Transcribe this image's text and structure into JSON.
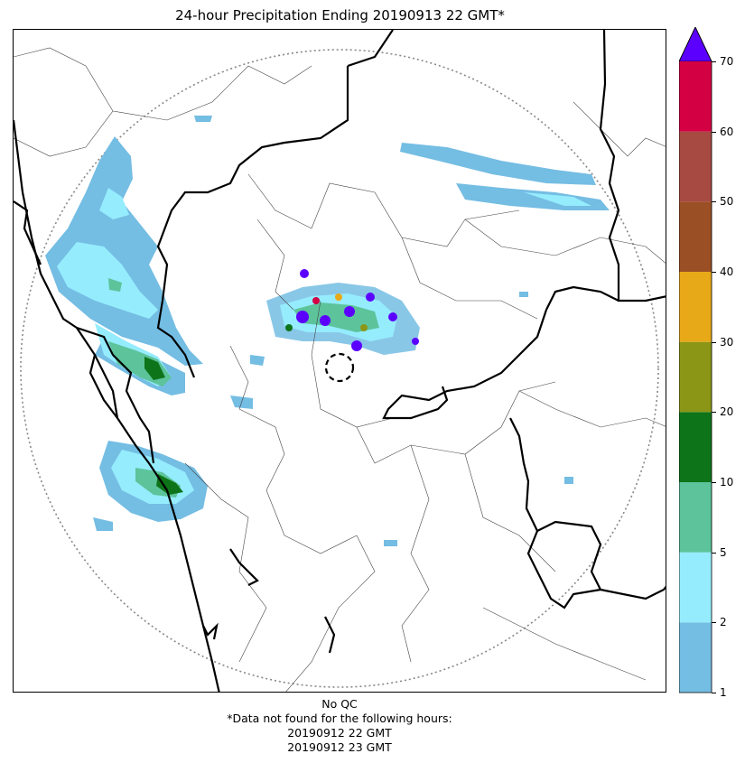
{
  "title": "24-hour Precipitation Ending 20190913 22 GMT*",
  "colorbar": {
    "extend_color": "#5b00ff",
    "bins": [
      {
        "from": 1,
        "to": 2,
        "color": "#74bde3"
      },
      {
        "from": 2,
        "to": 5,
        "color": "#95ecfd"
      },
      {
        "from": 5,
        "to": 10,
        "color": "#5cc39b"
      },
      {
        "from": 10,
        "to": 20,
        "color": "#0e7419"
      },
      {
        "from": 20,
        "to": 30,
        "color": "#8c9616"
      },
      {
        "from": 30,
        "to": 40,
        "color": "#e8a919"
      },
      {
        "from": 40,
        "to": 50,
        "color": "#9b4f25"
      },
      {
        "from": 50,
        "to": 60,
        "color": "#a64a42"
      },
      {
        "from": 60,
        "to": 70,
        "color": "#d40044"
      }
    ],
    "ticks": [
      "1",
      "2",
      "5",
      "10",
      "20",
      "30",
      "40",
      "50",
      "60",
      "70"
    ]
  },
  "footer": {
    "qc": "No QC",
    "note": "*Data not found for the following hours:",
    "hours": [
      "20190912 22 GMT",
      "20190912 23 GMT"
    ]
  }
}
